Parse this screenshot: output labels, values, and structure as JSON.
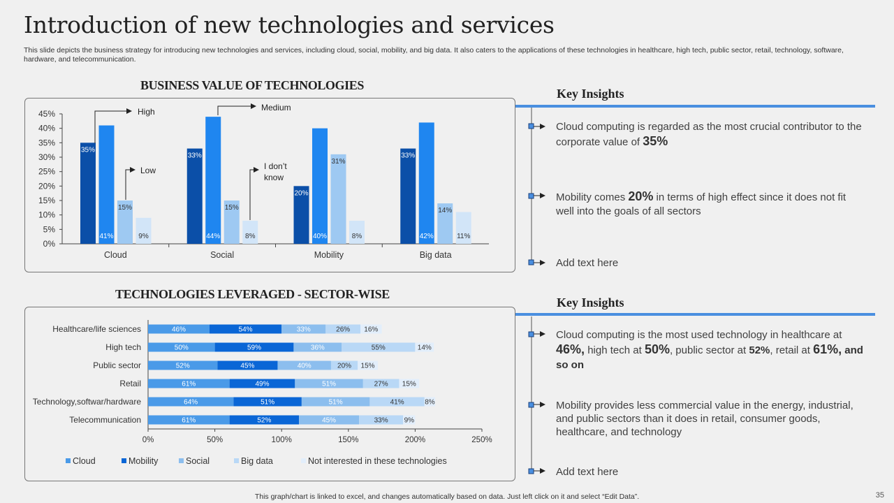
{
  "page": {
    "title": "Introduction of new technologies and services",
    "subtitle": "This slide depicts the business strategy for introducing new technologies and services, including cloud, social, mobility, and big data. It also caters to the applications of these technologies in healthcare, high tech, public sector, retail, technology, software, hardware, and telecommunication.",
    "footnote": "This graph/chart is linked to excel, and changes automatically based on data. Just left click on it and select “Edit Data”.",
    "page_number": "35"
  },
  "chart1": {
    "heading": "BUSINESS VALUE OF TECHNOLOGIES",
    "callouts": {
      "high": "High",
      "medium": "Medium",
      "low": "Low",
      "dontknow_1": "I don’t",
      "dontknow_2": "know"
    }
  },
  "chart2": {
    "heading": "TECHNOLOGIES LEVERAGED - SECTOR-WISE"
  },
  "insights1": {
    "title": "Key Insights",
    "p1_a": "Cloud computing is regarded as the most crucial contributor to the corporate value of ",
    "p1_em": "35%",
    "p2_a": "Mobility comes ",
    "p2_em": "20%",
    "p2_b": " in terms of high effect since it does not fit well into the goals of all sectors",
    "p3": "Add text here"
  },
  "insights2": {
    "title": "Key Insights",
    "p1_a": "Cloud computing is the most used technology in healthcare at ",
    "p1_em1": "46%,",
    "p1_b": " high tech at ",
    "p1_em2": "50%",
    "p1_c": ", public sector at ",
    "p1_em3": "52%",
    "p1_d": ", retail at ",
    "p1_em4": "61%,",
    "p1_e": " and so on",
    "p2": "Mobility provides less commercial value in the energy, industrial, and public sectors than it does in retail, consumer goods, healthcare, and technology",
    "p3": "Add text here"
  },
  "colors": {
    "accent": "#4a8fe0",
    "dark_blue": "#0b4fa8",
    "blue": "#1f86f0",
    "light_blue": "#9ec9f2",
    "pale_blue": "#d2e5f8"
  },
  "chart_data": [
    {
      "type": "bar",
      "title": "BUSINESS VALUE OF TECHNOLOGIES",
      "categories": [
        "Cloud",
        "Social",
        "Mobility",
        "Big data"
      ],
      "series": [
        {
          "name": "High",
          "values": [
            35,
            33,
            20,
            33
          ],
          "labels": [
            "35%",
            "33%",
            "20%",
            "33%"
          ],
          "label_pos": "top",
          "color": "#0b4fa8"
        },
        {
          "name": "Medium",
          "values": [
            41,
            44,
            40,
            42
          ],
          "labels": [
            "41%",
            "44%",
            "40%",
            "42%"
          ],
          "label_pos": "bottom",
          "color": "#1f86f0"
        },
        {
          "name": "Low",
          "values": [
            15,
            15,
            31,
            14
          ],
          "labels": [
            "15%",
            "15%",
            "31%",
            "14%"
          ],
          "label_pos": "top",
          "color": "#9ec9f2"
        },
        {
          "name": "I don’t know",
          "values": [
            9,
            8,
            8,
            11
          ],
          "labels": [
            "9%",
            "8%",
            "8%",
            "11%"
          ],
          "label_pos": "bottom",
          "color": "#d2e5f8"
        }
      ],
      "yticks": [
        "0%",
        "5%",
        "10%",
        "15%",
        "20%",
        "25%",
        "30%",
        "35%",
        "40%",
        "45%"
      ],
      "ylim": [
        0,
        45
      ],
      "legend": "callout arrows"
    },
    {
      "type": "bar",
      "orientation": "horizontal-stacked",
      "title": "TECHNOLOGIES LEVERAGED - SECTOR-WISE",
      "categories": [
        "Healthcare/life sciences",
        "High tech",
        "Public sector",
        "Retail",
        "Technology,softwar/hardware",
        "Telecommunication"
      ],
      "series": [
        {
          "name": "Cloud",
          "values": [
            46,
            50,
            52,
            61,
            64,
            61
          ],
          "color": "#4a9ae8"
        },
        {
          "name": "Mobility",
          "values": [
            54,
            59,
            45,
            49,
            51,
            52
          ],
          "color": "#0a66d6"
        },
        {
          "name": "Social",
          "values": [
            33,
            36,
            40,
            51,
            51,
            45
          ],
          "color": "#8cbeee"
        },
        {
          "name": "Big data",
          "values": [
            26,
            55,
            20,
            27,
            41,
            33
          ],
          "color": "#b9d8f6"
        },
        {
          "name": "Not interested in these technologies",
          "values": [
            16,
            14,
            15,
            15,
            8,
            9
          ],
          "color": "#e2eefb"
        }
      ],
      "xticks": [
        "0%",
        "50%",
        "100%",
        "150%",
        "200%",
        "250%"
      ],
      "xlim": [
        0,
        250
      ],
      "legend": "bottom"
    }
  ]
}
